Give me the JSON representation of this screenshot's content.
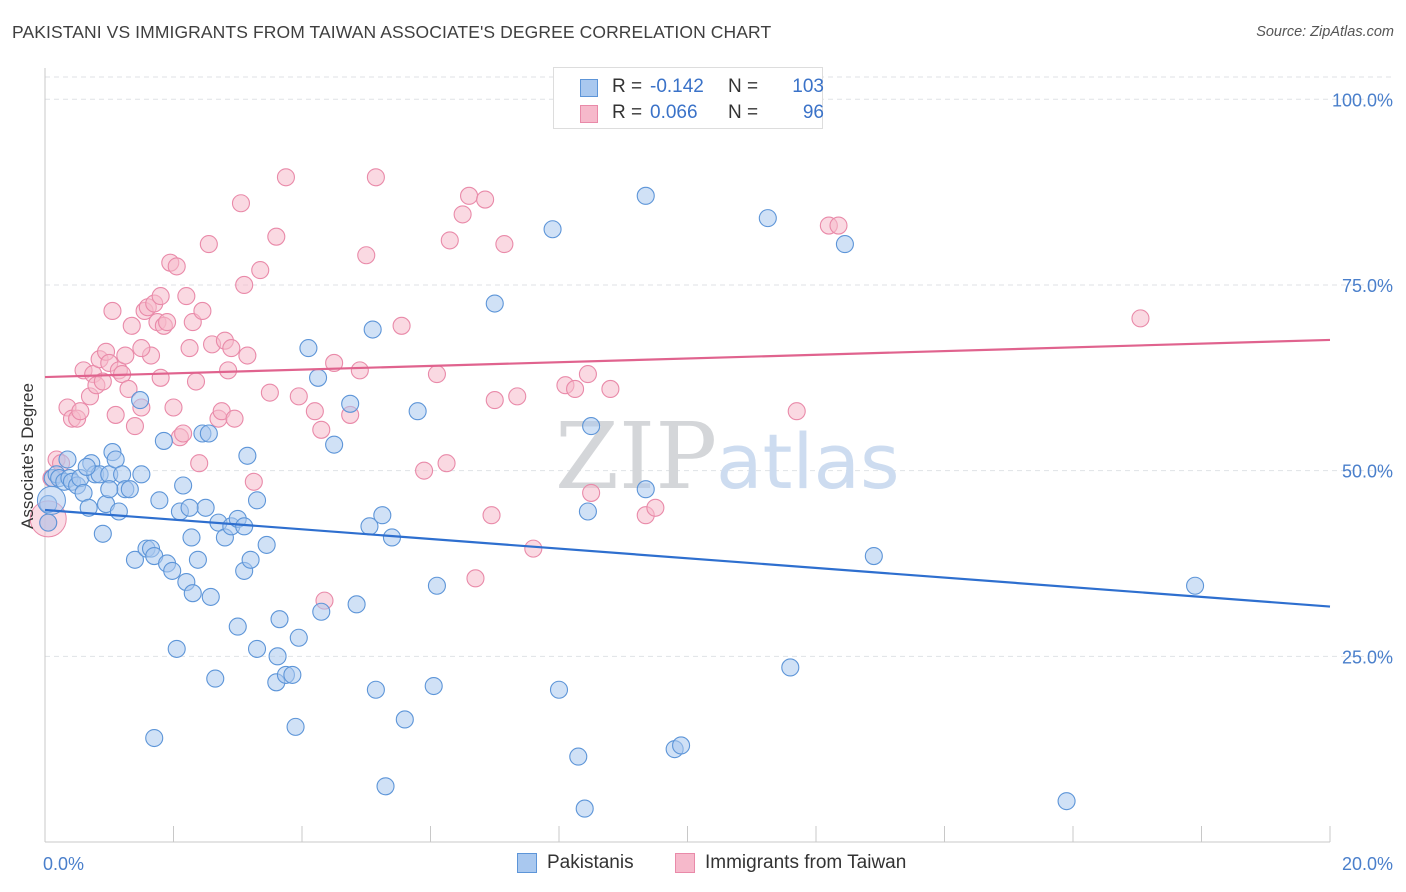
{
  "header": {
    "title": "PAKISTANI VS IMMIGRANTS FROM TAIWAN ASSOCIATE'S DEGREE CORRELATION CHART",
    "source": "Source: ZipAtlas.com"
  },
  "legend": {
    "rows": [
      {
        "r_label": "R =",
        "r_value": "-0.142",
        "n_label": "N =",
        "n_value": "103"
      },
      {
        "r_label": "R =",
        "r_value": "0.066",
        "n_label": "N =",
        "n_value": "96"
      }
    ]
  },
  "watermark": {
    "zip": "ZIP",
    "atlas": "atlas"
  },
  "colors": {
    "blue_fill": "#a9c8ef",
    "blue_stroke": "#5d95d8",
    "blue_line": "#2e6fcf",
    "pink_fill": "#f6b9cb",
    "pink_stroke": "#e98aa9",
    "pink_line": "#e0638e",
    "tick_text": "#4a7fcb",
    "grid": "#dfe2e6"
  },
  "chart_data": {
    "type": "scatter",
    "title": "PAKISTANI VS IMMIGRANTS FROM TAIWAN ASSOCIATE'S DEGREE CORRELATION CHART",
    "xlabel": "",
    "ylabel": "Associate's Degree",
    "xlim": [
      0,
      20
    ],
    "ylim": [
      0,
      103
    ],
    "x_tick_labels": {
      "left": "0.0%",
      "right": "20.0%"
    },
    "y_ticks": [
      {
        "value": 25,
        "label": "25.0%"
      },
      {
        "value": 50,
        "label": "50.0%"
      },
      {
        "value": 75,
        "label": "75.0%"
      },
      {
        "value": 100,
        "label": "100.0%"
      }
    ],
    "grid": true,
    "legend_position": "bottom-center",
    "series": [
      {
        "name": "Pakistanis",
        "r": -0.142,
        "n": 103,
        "trend": {
          "x": [
            0,
            20
          ],
          "y": [
            44.7,
            31.7
          ]
        },
        "points": [
          [
            0.05,
            45.5
          ],
          [
            0.05,
            43.0
          ],
          [
            0.12,
            49.0
          ],
          [
            0.18,
            49.5
          ],
          [
            0.22,
            49.0
          ],
          [
            0.3,
            48.5
          ],
          [
            0.35,
            51.5
          ],
          [
            0.38,
            49.0
          ],
          [
            0.42,
            48.5
          ],
          [
            0.5,
            48.0
          ],
          [
            0.55,
            49.0
          ],
          [
            0.6,
            47.0
          ],
          [
            0.68,
            45.0
          ],
          [
            0.72,
            51.0
          ],
          [
            0.78,
            49.5
          ],
          [
            0.85,
            49.5
          ],
          [
            0.9,
            41.5
          ],
          [
            0.95,
            45.5
          ],
          [
            1.0,
            49.5
          ],
          [
            1.05,
            52.5
          ],
          [
            1.1,
            51.5
          ],
          [
            1.15,
            44.5
          ],
          [
            1.2,
            49.5
          ],
          [
            1.25,
            47.5
          ],
          [
            1.32,
            47.5
          ],
          [
            1.4,
            38.0
          ],
          [
            1.48,
            59.5
          ],
          [
            1.5,
            49.5
          ],
          [
            1.58,
            39.5
          ],
          [
            1.65,
            39.5
          ],
          [
            1.7,
            38.5
          ],
          [
            1.78,
            46.0
          ],
          [
            1.85,
            54.0
          ],
          [
            1.9,
            37.5
          ],
          [
            1.98,
            36.5
          ],
          [
            2.05,
            26.0
          ],
          [
            2.1,
            44.5
          ],
          [
            2.15,
            48.0
          ],
          [
            2.2,
            35.0
          ],
          [
            2.28,
            41.0
          ],
          [
            2.3,
            33.5
          ],
          [
            2.38,
            38.0
          ],
          [
            2.45,
            55.0
          ],
          [
            2.5,
            45.0
          ],
          [
            2.55,
            55.0
          ],
          [
            2.58,
            33.0
          ],
          [
            2.65,
            22.0
          ],
          [
            2.7,
            43.0
          ],
          [
            2.8,
            41.0
          ],
          [
            2.9,
            42.5
          ],
          [
            3.0,
            43.5
          ],
          [
            3.0,
            29.0
          ],
          [
            3.1,
            36.5
          ],
          [
            3.15,
            52.0
          ],
          [
            3.2,
            38.0
          ],
          [
            3.3,
            46.0
          ],
          [
            3.3,
            26.0
          ],
          [
            3.45,
            40.0
          ],
          [
            3.6,
            21.5
          ],
          [
            3.62,
            25.0
          ],
          [
            3.65,
            30.0
          ],
          [
            3.75,
            22.5
          ],
          [
            3.85,
            22.5
          ],
          [
            3.9,
            15.5
          ],
          [
            3.95,
            27.5
          ],
          [
            4.1,
            66.5
          ],
          [
            4.25,
            62.5
          ],
          [
            4.3,
            31.0
          ],
          [
            4.5,
            53.5
          ],
          [
            4.75,
            59.0
          ],
          [
            4.85,
            32.0
          ],
          [
            5.05,
            42.5
          ],
          [
            5.1,
            69.0
          ],
          [
            5.15,
            20.5
          ],
          [
            5.25,
            44.0
          ],
          [
            5.3,
            7.5
          ],
          [
            5.4,
            41.0
          ],
          [
            5.6,
            16.5
          ],
          [
            5.8,
            58.0
          ],
          [
            6.05,
            21.0
          ],
          [
            6.1,
            34.5
          ],
          [
            7.0,
            72.5
          ],
          [
            7.9,
            82.5
          ],
          [
            8.0,
            20.5
          ],
          [
            8.3,
            11.5
          ],
          [
            8.4,
            4.5
          ],
          [
            8.45,
            44.5
          ],
          [
            8.5,
            56.0
          ],
          [
            9.35,
            47.5
          ],
          [
            9.35,
            87.0
          ],
          [
            9.8,
            12.5
          ],
          [
            9.9,
            13.0
          ],
          [
            11.25,
            84.0
          ],
          [
            11.6,
            23.5
          ],
          [
            12.45,
            80.5
          ],
          [
            12.9,
            38.5
          ],
          [
            15.9,
            5.5
          ],
          [
            17.9,
            34.5
          ],
          [
            1.7,
            14.0
          ],
          [
            3.1,
            42.5
          ],
          [
            2.25,
            45.0
          ],
          [
            0.65,
            50.5
          ],
          [
            1.0,
            47.5
          ]
        ]
      },
      {
        "name": "Immigrants from Taiwan",
        "r": 0.066,
        "n": 96,
        "trend": {
          "x": [
            0,
            20
          ],
          "y": [
            62.6,
            67.6
          ]
        },
        "points": [
          [
            0.05,
            43.0
          ],
          [
            0.1,
            49.0
          ],
          [
            0.18,
            51.5
          ],
          [
            0.25,
            51.0
          ],
          [
            0.35,
            58.5
          ],
          [
            0.42,
            57.0
          ],
          [
            0.5,
            57.0
          ],
          [
            0.55,
            58.0
          ],
          [
            0.6,
            63.5
          ],
          [
            0.7,
            60.0
          ],
          [
            0.75,
            63.0
          ],
          [
            0.8,
            61.5
          ],
          [
            0.85,
            65.0
          ],
          [
            0.95,
            66.0
          ],
          [
            1.0,
            64.5
          ],
          [
            1.05,
            71.5
          ],
          [
            1.1,
            57.5
          ],
          [
            1.15,
            63.5
          ],
          [
            1.2,
            63.0
          ],
          [
            1.25,
            65.5
          ],
          [
            1.3,
            61.0
          ],
          [
            1.35,
            69.5
          ],
          [
            1.4,
            56.0
          ],
          [
            1.5,
            58.5
          ],
          [
            1.55,
            71.5
          ],
          [
            1.6,
            72.0
          ],
          [
            1.65,
            65.5
          ],
          [
            1.7,
            72.5
          ],
          [
            1.75,
            70.0
          ],
          [
            1.8,
            62.5
          ],
          [
            1.85,
            69.5
          ],
          [
            1.9,
            70.0
          ],
          [
            1.95,
            78.0
          ],
          [
            2.0,
            58.5
          ],
          [
            2.05,
            77.5
          ],
          [
            2.1,
            54.5
          ],
          [
            2.2,
            73.5
          ],
          [
            2.25,
            66.5
          ],
          [
            2.3,
            70.0
          ],
          [
            2.35,
            62.0
          ],
          [
            2.4,
            51.0
          ],
          [
            2.45,
            71.5
          ],
          [
            2.55,
            80.5
          ],
          [
            2.6,
            67.0
          ],
          [
            2.7,
            57.0
          ],
          [
            2.75,
            58.0
          ],
          [
            2.8,
            67.5
          ],
          [
            2.85,
            63.5
          ],
          [
            2.9,
            66.5
          ],
          [
            3.1,
            75.0
          ],
          [
            3.15,
            65.5
          ],
          [
            3.25,
            48.5
          ],
          [
            3.35,
            77.0
          ],
          [
            3.5,
            60.5
          ],
          [
            3.6,
            81.5
          ],
          [
            3.75,
            89.5
          ],
          [
            3.95,
            60.0
          ],
          [
            4.2,
            58.0
          ],
          [
            4.3,
            55.5
          ],
          [
            4.35,
            32.5
          ],
          [
            4.5,
            64.5
          ],
          [
            4.75,
            57.5
          ],
          [
            4.9,
            63.5
          ],
          [
            5.0,
            79.0
          ],
          [
            5.15,
            89.5
          ],
          [
            5.55,
            69.5
          ],
          [
            5.9,
            50.0
          ],
          [
            6.1,
            63.0
          ],
          [
            6.25,
            51.0
          ],
          [
            6.3,
            81.0
          ],
          [
            6.5,
            84.5
          ],
          [
            6.6,
            87.0
          ],
          [
            6.7,
            35.5
          ],
          [
            6.85,
            86.5
          ],
          [
            6.95,
            44.0
          ],
          [
            7.0,
            59.5
          ],
          [
            7.15,
            80.5
          ],
          [
            7.35,
            60.0
          ],
          [
            7.6,
            39.5
          ],
          [
            8.1,
            61.5
          ],
          [
            8.25,
            61.0
          ],
          [
            8.45,
            63.0
          ],
          [
            8.5,
            47.0
          ],
          [
            8.8,
            61.0
          ],
          [
            9.35,
            44.0
          ],
          [
            9.5,
            45.0
          ],
          [
            11.7,
            58.0
          ],
          [
            12.2,
            83.0
          ],
          [
            12.35,
            83.0
          ],
          [
            17.05,
            70.5
          ],
          [
            2.95,
            57.0
          ],
          [
            1.8,
            73.5
          ],
          [
            3.05,
            86.0
          ],
          [
            2.15,
            55.0
          ],
          [
            0.9,
            62.0
          ],
          [
            1.5,
            66.5
          ]
        ]
      }
    ]
  }
}
